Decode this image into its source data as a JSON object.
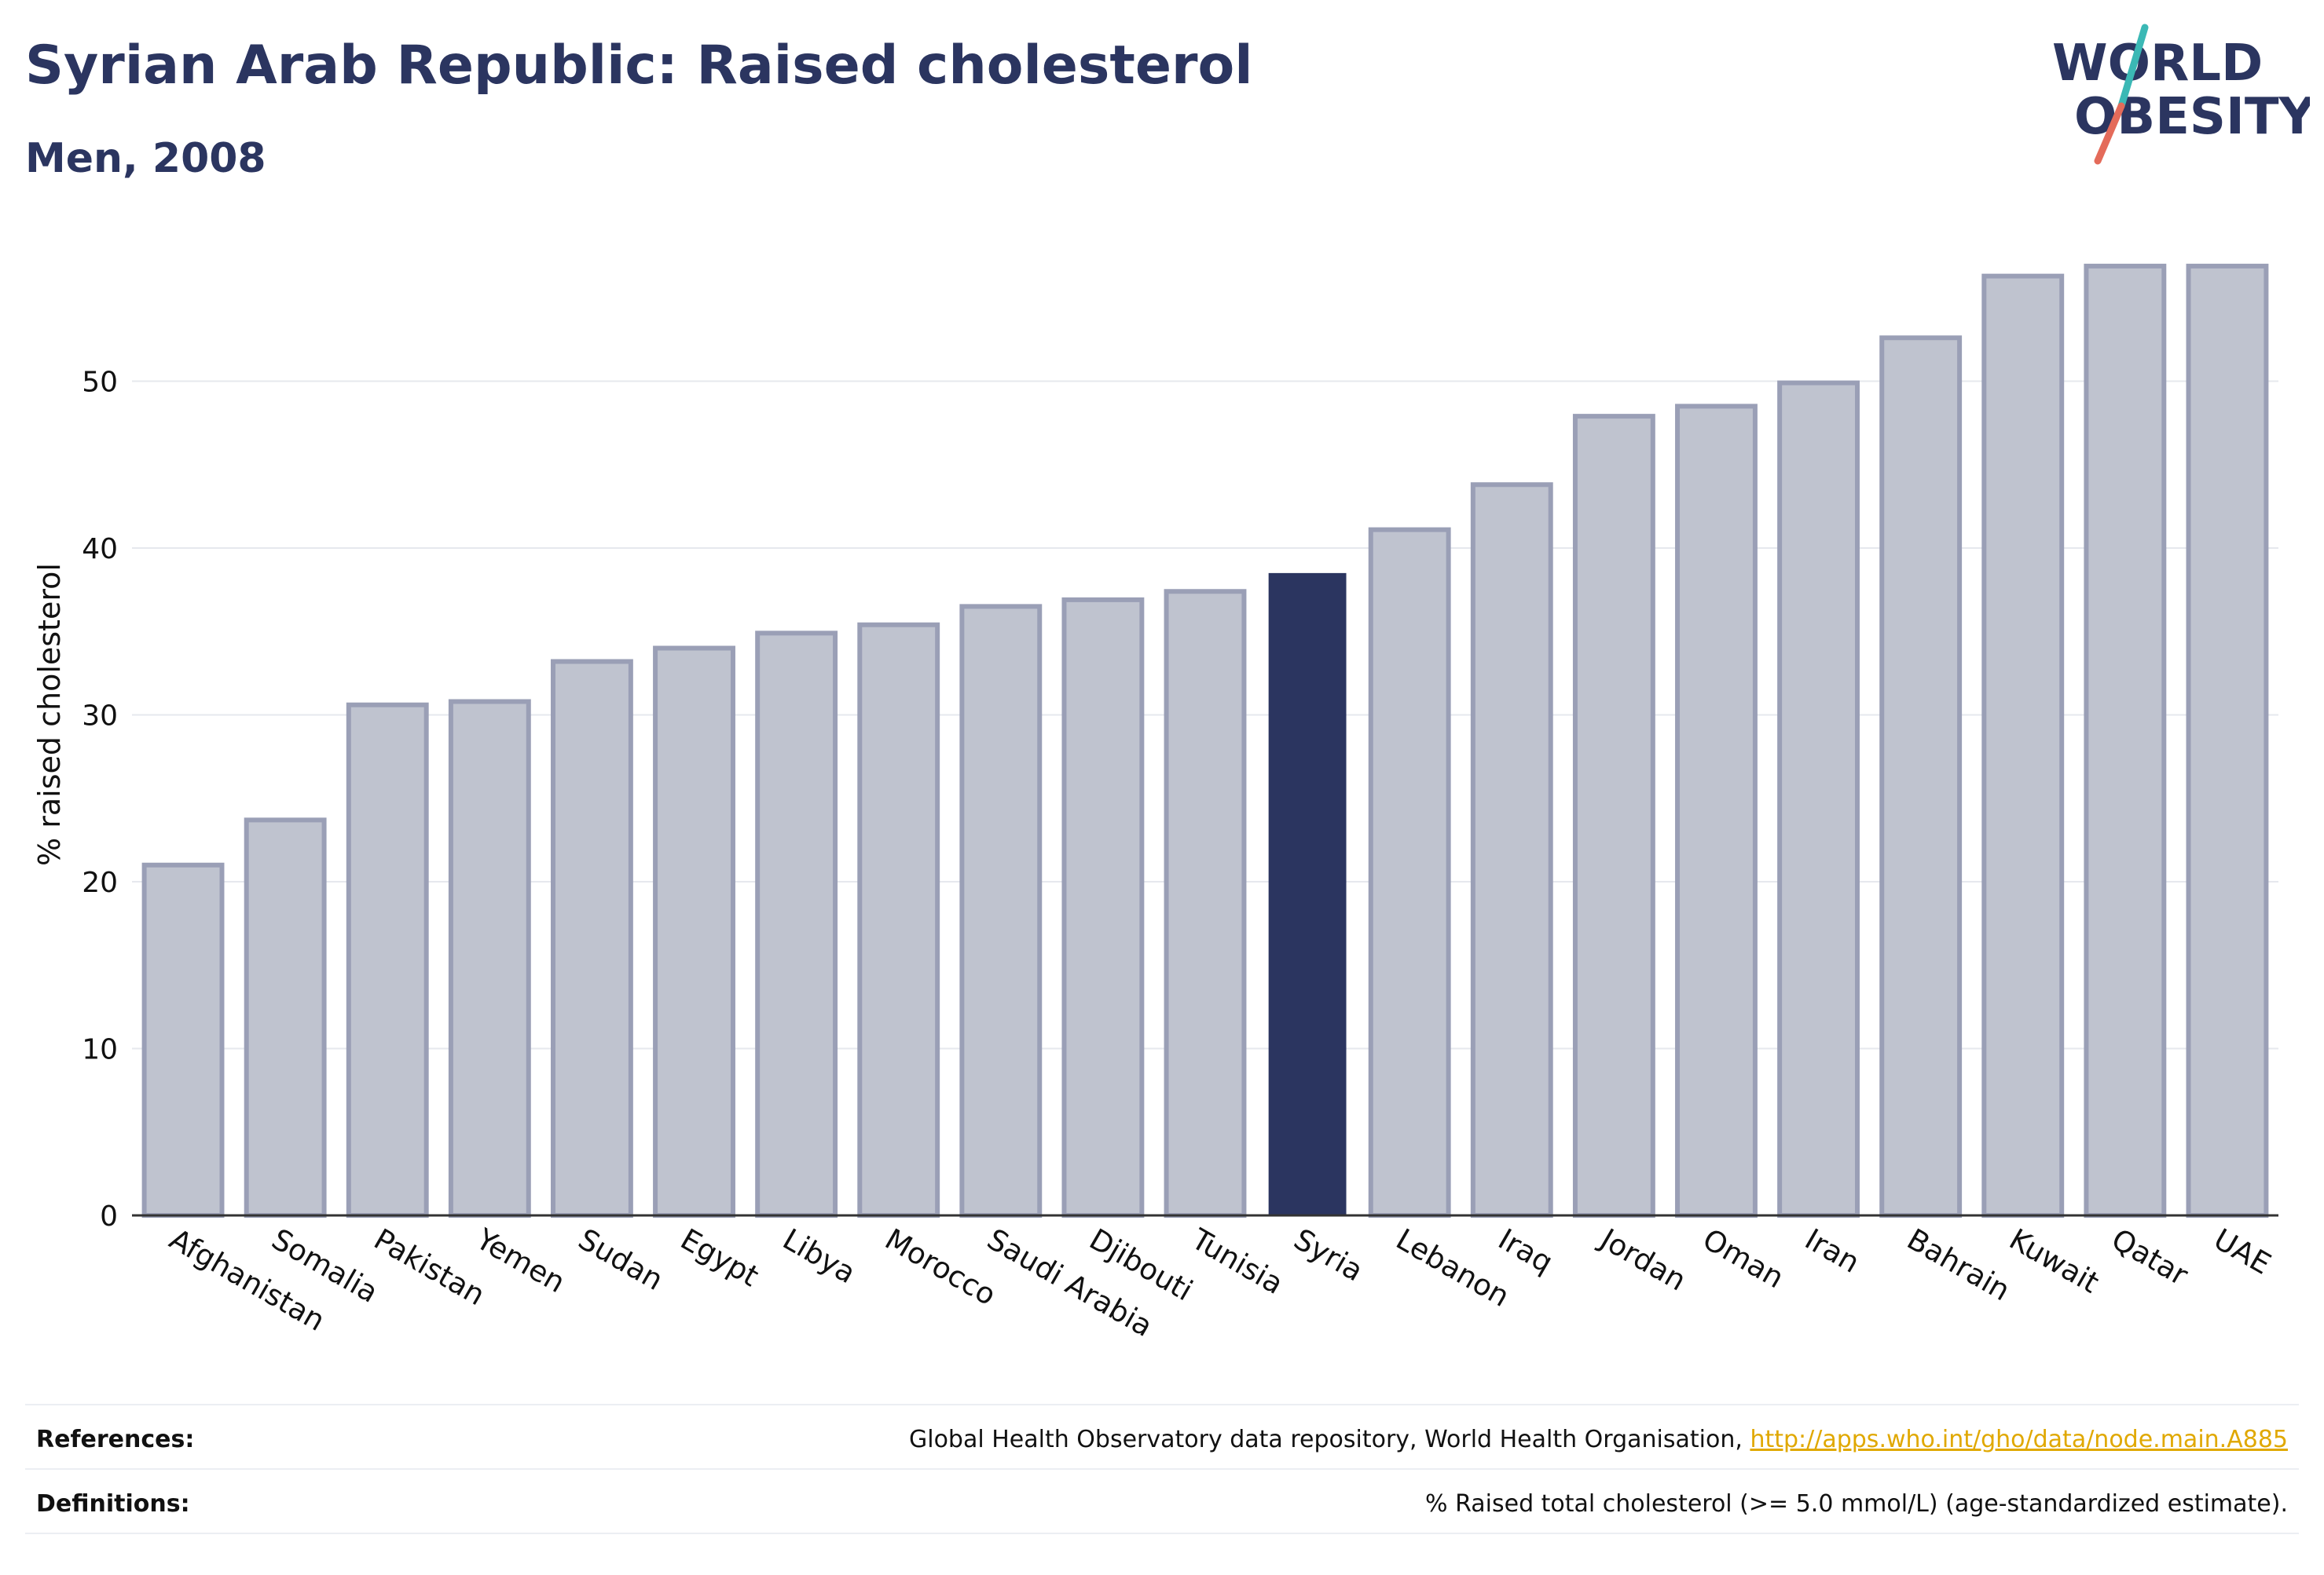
{
  "header": {
    "title": "Syrian Arab Republic: Raised cholesterol",
    "subtitle": "Men, 2008"
  },
  "logo": {
    "line1": "WORLD",
    "line2": "OBESITY",
    "accent_colors": [
      "#3bb8b5",
      "#e46b5a"
    ]
  },
  "colors": {
    "highlight": "#2b3560",
    "bar": "#bfc3cf",
    "bar_border": "#9a9fb6",
    "grid": "#e6e8ee"
  },
  "chart_data": {
    "type": "bar",
    "categories": [
      "Afghanistan",
      "Somalia",
      "Pakistan",
      "Yemen",
      "Sudan",
      "Egypt",
      "Libya",
      "Morocco",
      "Saudi Arabia",
      "Djibouti",
      "Tunisia",
      "Syria",
      "Lebanon",
      "Iraq",
      "Jordan",
      "Oman",
      "Iran",
      "Bahrain",
      "Kuwait",
      "Qatar",
      "UAE"
    ],
    "values": [
      21.0,
      23.7,
      30.6,
      30.8,
      33.2,
      34.0,
      34.9,
      35.4,
      36.5,
      36.9,
      37.4,
      38.5,
      41.1,
      43.8,
      47.9,
      48.5,
      49.9,
      52.6,
      56.3,
      56.9,
      56.9
    ],
    "highlight": "Syria",
    "ylabel": "% raised cholesterol",
    "xlabel": "",
    "ylim": [
      0,
      57
    ],
    "yticks": [
      0,
      10,
      20,
      30,
      40,
      50
    ],
    "grid": true
  },
  "footer": {
    "references_label": "References:",
    "references_text": "Global Health Observatory data repository, World Health Organisation,",
    "references_link": "http://apps.who.int/gho/data/node.main.A885",
    "definitions_label": "Definitions:",
    "definitions_text": "% Raised total cholesterol (>= 5.0 mmol/L) (age-standardized estimate)."
  }
}
